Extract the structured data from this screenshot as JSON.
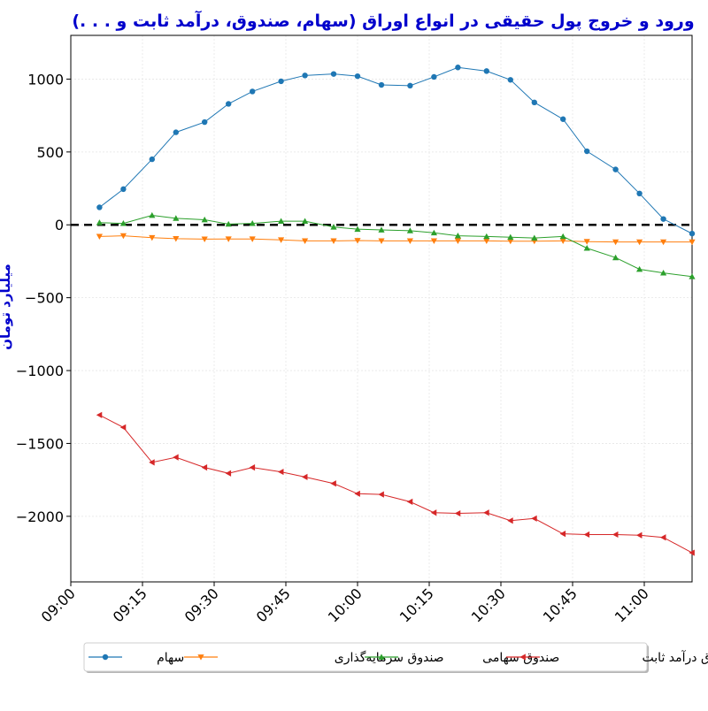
{
  "chart_data": {
    "type": "line",
    "title": "ورود و خروج پول حقیقی در انواع اوراق (سهام، صندوق، درآمد ثابت و . . .)",
    "xlabel": "",
    "ylabel": "میلیارد تومان",
    "x_tick_labels": [
      "09:00",
      "09:15",
      "09:30",
      "09:45",
      "10:00",
      "10:15",
      "10:30",
      "10:45",
      "11:00"
    ],
    "xlim": [
      "09:00",
      "11:10"
    ],
    "ylim": [
      -2450,
      1300
    ],
    "y_ticks": [
      1000,
      500,
      0,
      -500,
      -1000,
      -1500,
      -2000
    ],
    "y_tick_labels": [
      "1000",
      "500",
      "0",
      "−500",
      "−1000",
      "−1500",
      "−2000"
    ],
    "reference_line": {
      "y": 0,
      "style": "dashed",
      "color": "#000000"
    },
    "grid": true,
    "legend_position": "bottom",
    "x": [
      "09:06",
      "09:11",
      "09:17",
      "09:22",
      "09:28",
      "09:33",
      "09:38",
      "09:44",
      "09:49",
      "09:55",
      "10:00",
      "10:05",
      "10:11",
      "10:16",
      "10:21",
      "10:27",
      "10:32",
      "10:37",
      "10:43",
      "10:48",
      "10:54",
      "10:59",
      "11:04",
      "11:10"
    ],
    "series": [
      {
        "name": "سهام",
        "color": "#1f77b4",
        "marker": "circle",
        "values": [
          120,
          245,
          450,
          635,
          705,
          830,
          915,
          985,
          1025,
          1035,
          1020,
          960,
          955,
          1015,
          1080,
          1055,
          995,
          840,
          725,
          505,
          380,
          215,
          40,
          -60
        ]
      },
      {
        "name": "صندوق سرمایه‌گذاری",
        "color": "#ff7f0e",
        "marker": "triangle-down",
        "values": [
          -80,
          -75,
          -88,
          -95,
          -98,
          -97,
          -97,
          -103,
          -110,
          -110,
          -108,
          -110,
          -110,
          -110,
          -110,
          -110,
          -112,
          -112,
          -110,
          -115,
          -118,
          -118,
          -118,
          -118
        ]
      },
      {
        "name": "صندوق سهامی",
        "color": "#2ca02c",
        "marker": "triangle-up",
        "values": [
          15,
          10,
          65,
          45,
          35,
          5,
          10,
          25,
          25,
          -15,
          -30,
          -35,
          -40,
          -55,
          -75,
          -80,
          -85,
          -90,
          -80,
          -160,
          -225,
          -305,
          -330,
          -355
        ]
      },
      {
        "name": "صندوق درآمد ثابت",
        "color": "#d62728",
        "marker": "triangle-left",
        "values": [
          -1305,
          -1390,
          -1630,
          -1595,
          -1665,
          -1705,
          -1665,
          -1695,
          -1730,
          -1775,
          -1845,
          -1850,
          -1900,
          -1975,
          -1980,
          -1975,
          -2030,
          -2015,
          -2120,
          -2125,
          -2125,
          -2130,
          -2145,
          -2250
        ]
      }
    ]
  }
}
